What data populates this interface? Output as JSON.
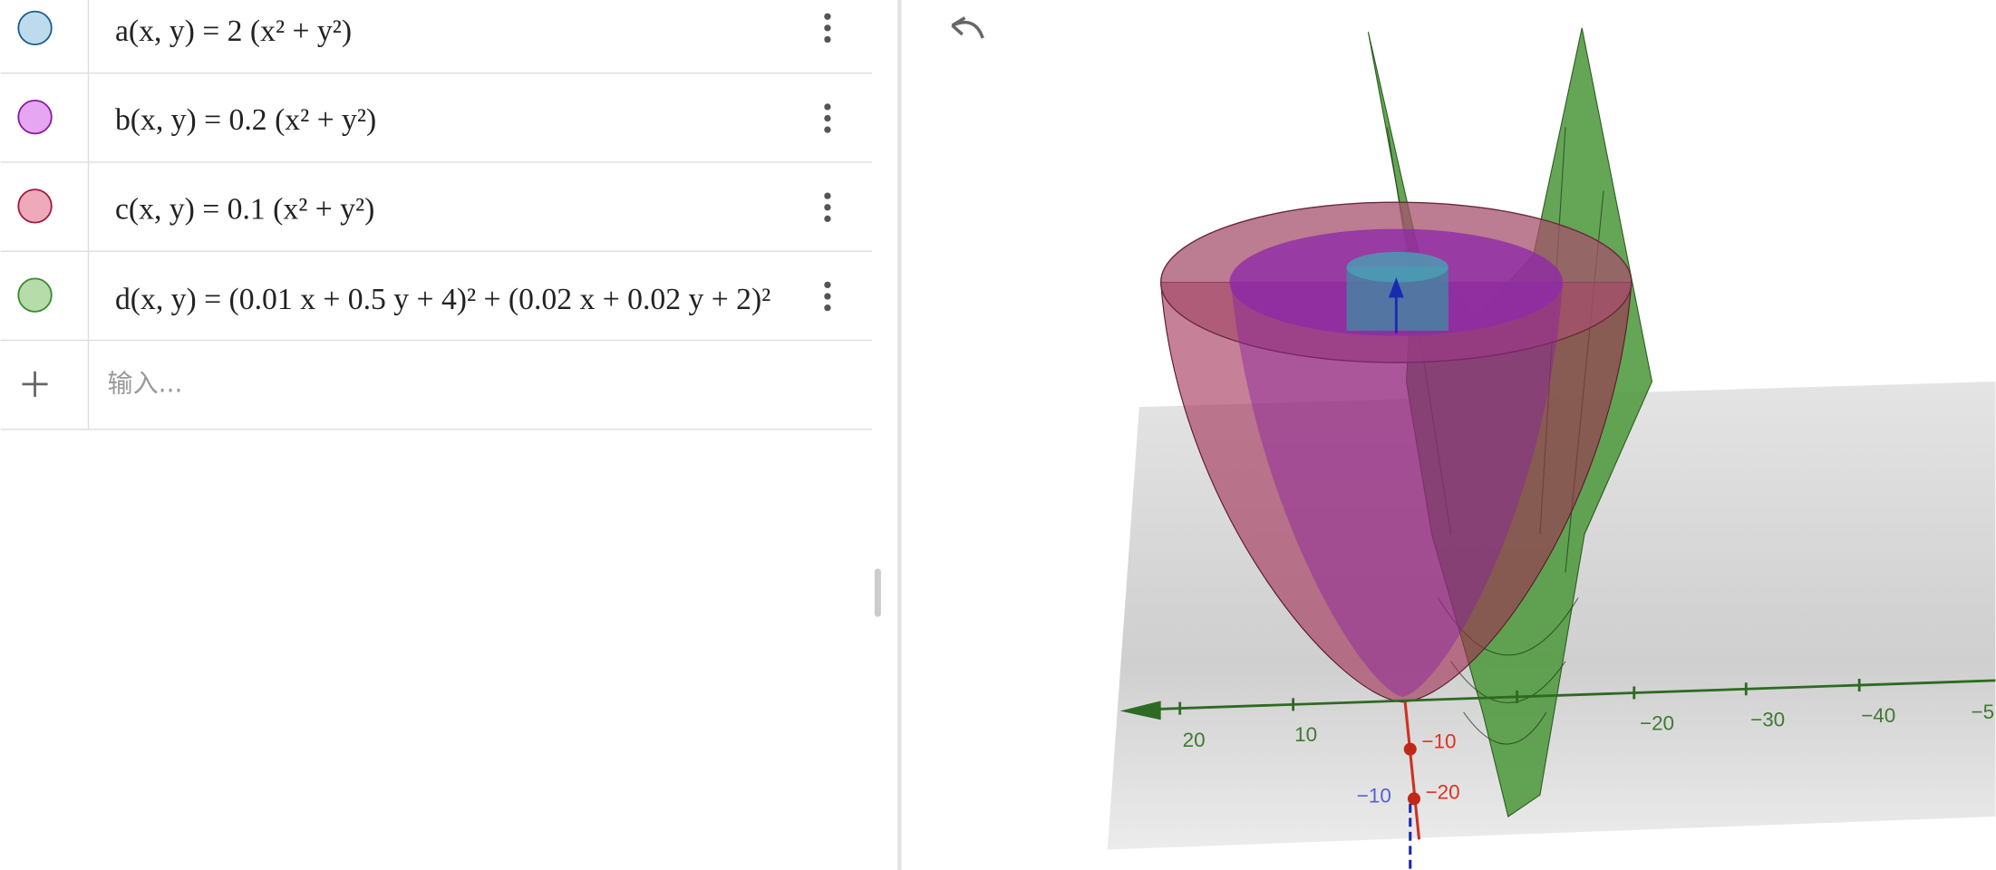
{
  "algebra": {
    "entries": [
      {
        "formula": "a(x, y) = 2 (x² + y²)"
      },
      {
        "formula": "b(x, y) = 0.2 (x² + y²)"
      },
      {
        "formula": "c(x, y) = 0.1 (x² + y²)"
      },
      {
        "formula": "d(x, y) = (0.01 x + 0.5 y + 4)² + (0.02 x + 0.02 y + 2)²"
      }
    ],
    "input_placeholder": "输入..."
  },
  "graphics": {
    "x_axis_labels": [
      "20",
      "10",
      "−20",
      "−30",
      "−40",
      "−5"
    ],
    "y_axis_labels": [
      "−10",
      "−20"
    ],
    "z_axis_labels": [
      "−10"
    ]
  }
}
